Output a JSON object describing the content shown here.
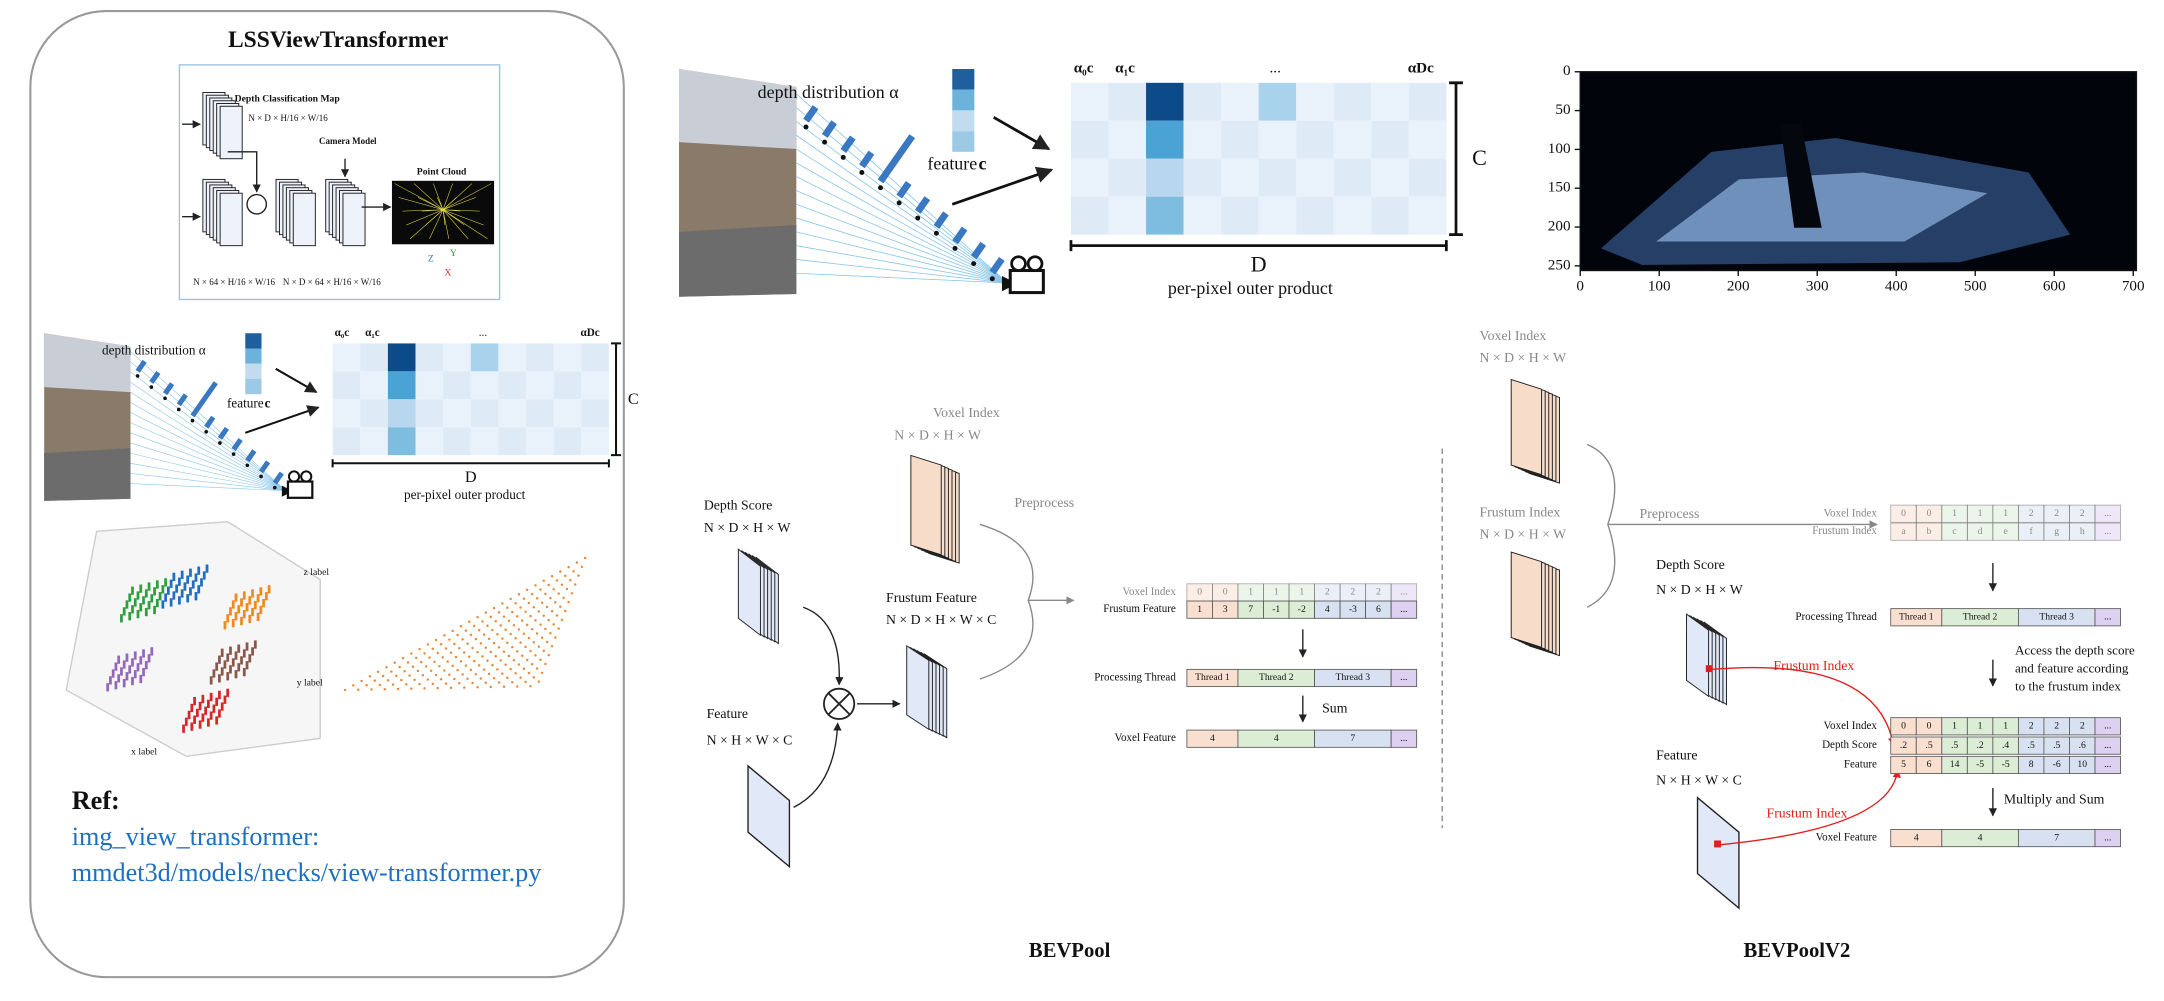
{
  "left_panel": {
    "title": "LSSViewTransformer",
    "network": {
      "depth_map_label": "Depth Classification Map",
      "depth_map_shape": "N × D × H/16 × W/16",
      "camera_model": "Camera Model",
      "point_cloud": "Point Cloud",
      "shape_a": "N × 64 × H/16 × W/16",
      "shape_b": "N × D × 64 × H/16 × W/16",
      "axes": [
        "Z",
        "Y",
        "X"
      ]
    },
    "plots": {
      "x_label": "x label",
      "y_label": "y label",
      "z_label": "z label"
    },
    "ref": {
      "heading": "Ref:",
      "line1": "img_view_transformer:",
      "line2": "mmdet3d/models/necks/view-transformer.py"
    }
  },
  "outer_product": {
    "depth_distribution": "depth distribution α",
    "feature": "feature",
    "feature_symbol": "c",
    "col_labels": [
      "α₀c",
      "α₁c",
      "αDc"
    ],
    "ellipsis": "...",
    "c_axis": "C",
    "d_axis": "D",
    "caption": "per-pixel outer product"
  },
  "image_plot": {
    "xlim": [
      0,
      704
    ],
    "ylim": [
      0,
      256
    ],
    "xticks": [
      0,
      100,
      200,
      300,
      400,
      500,
      600,
      700
    ],
    "yticks": [
      0,
      50,
      100,
      150,
      200,
      250
    ]
  },
  "bevpool": {
    "caption": "BEVPool",
    "voxel_index": {
      "label": "Voxel Index",
      "shape": "N × D × H × W"
    },
    "depth_score": {
      "label": "Depth Score",
      "shape": "N × D × H × W"
    },
    "frustum_feature": {
      "label": "Frustum Feature",
      "shape": "N × D × H × W × C"
    },
    "feature": {
      "label": "Feature",
      "shape": "N × H × W × C"
    },
    "preprocess": "Preprocess",
    "sum": "Sum",
    "rows": {
      "voxel_index": {
        "label": "Voxel Index",
        "cells": [
          "0",
          "0",
          "1",
          "1",
          "1",
          "2",
          "2",
          "2",
          "..."
        ]
      },
      "frustum_feature": {
        "label": "Frustum Feature",
        "cells": [
          "1",
          "3",
          "7",
          "-1",
          "-2",
          "4",
          "-3",
          "6",
          "..."
        ]
      },
      "processing_thread": {
        "label": "Processing Thread",
        "cells": [
          "Thread 1",
          "Thread 2",
          "Thread 3",
          "..."
        ]
      },
      "voxel_feature": {
        "label": "Voxel Feature",
        "cells": [
          "4",
          "4",
          "7",
          "..."
        ]
      }
    }
  },
  "bevpool_v2": {
    "caption": "BEVPoolV2",
    "voxel_index": {
      "label": "Voxel Index",
      "shape": "N × D × H × W"
    },
    "frustum_index": {
      "label": "Frustum Index",
      "shape": "N × D × H × W"
    },
    "depth_score": {
      "label": "Depth Score",
      "shape": "N × D × H × W"
    },
    "feature": {
      "label": "Feature",
      "shape": "N × H × W × C"
    },
    "preprocess": "Preprocess",
    "frustum_index_arrow": "Frustum Index",
    "access_note": [
      "Access the depth score",
      "and feature according",
      "to the frustum index"
    ],
    "multiply_and_sum": "Multiply and Sum",
    "rows": {
      "voxel_index_pre": {
        "label": "Voxel Index",
        "cells": [
          "0",
          "0",
          "1",
          "1",
          "1",
          "2",
          "2",
          "2",
          "..."
        ]
      },
      "frustum_index_pre": {
        "label": "Frustum Index",
        "cells": [
          "a",
          "b",
          "c",
          "d",
          "e",
          "f",
          "g",
          "h",
          "..."
        ]
      },
      "processing_thread": {
        "label": "Processing Thread",
        "cells": [
          "Thread 1",
          "Thread 2",
          "Thread 3",
          "..."
        ]
      },
      "voxel_index": {
        "label": "Voxel Index",
        "cells": [
          "0",
          "0",
          "1",
          "1",
          "1",
          "2",
          "2",
          "2",
          "..."
        ]
      },
      "depth_score": {
        "label": "Depth Score",
        "cells": [
          ".2",
          ".5",
          ".5",
          ".2",
          ".4",
          ".5",
          ".5",
          ".6",
          "..."
        ]
      },
      "feature": {
        "label": "Feature",
        "cells": [
          "5",
          "6",
          "14",
          "-5",
          "-5",
          "8",
          "-6",
          "10",
          "..."
        ]
      },
      "voxel_feature": {
        "label": "Voxel Feature",
        "cells": [
          "4",
          "4",
          "7",
          "..."
        ]
      }
    }
  }
}
